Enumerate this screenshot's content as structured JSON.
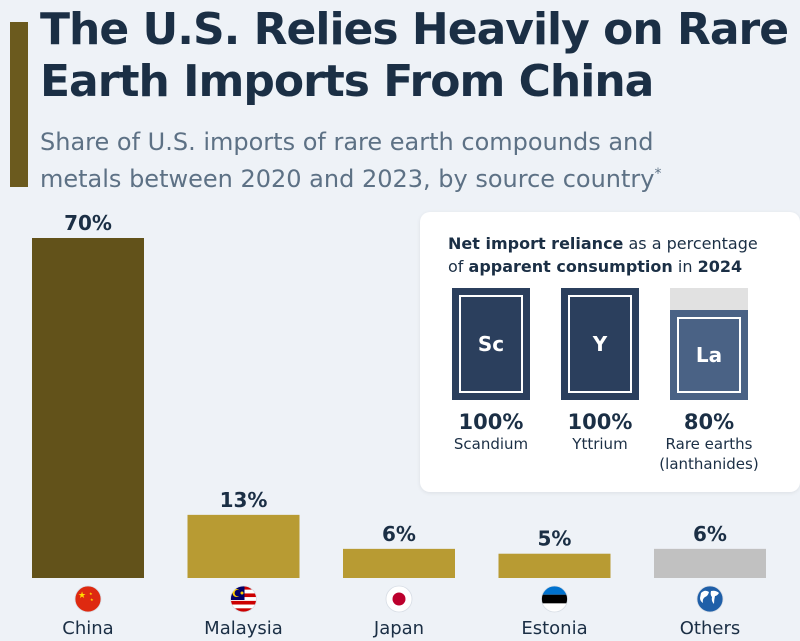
{
  "title_line1": "The U.S. Relies Heavily on Rare",
  "title_line2": "Earth Imports From China",
  "subtitle_line1": "Share of U.S. imports of rare earth compounds and",
  "subtitle_line2": "metals between 2020 and 2023, by source country",
  "subtitle_mark": "*",
  "colors": {
    "china": "#62521a",
    "others_bars": "#b89b33",
    "other_countries": "#c1c1c1",
    "accent": "#6b5a1e",
    "tile": "#2b3f5d",
    "tile_partial": "#4a6285"
  },
  "chart_data": {
    "type": "bar",
    "title": "The U.S. Relies Heavily on Rare Earth Imports From China",
    "subtitle": "Share of U.S. imports of rare earth compounds and metals between 2020 and 2023, by source country*",
    "categories": [
      "China",
      "Malaysia",
      "Japan",
      "Estonia",
      "Others"
    ],
    "values": [
      70,
      13,
      6,
      5,
      6
    ],
    "value_labels": [
      "70%",
      "13%",
      "6%",
      "5%",
      "6%"
    ],
    "unit": "%",
    "flag_icons": [
      "china-flag-icon",
      "malaysia-flag-icon",
      "japan-flag-icon",
      "estonia-flag-icon",
      "globe-icon"
    ],
    "ylim": [
      0,
      70
    ],
    "grid": false,
    "legend": "none"
  },
  "panel": {
    "heading_bold1": "Net import reliance",
    "heading_text1": " as a percentage",
    "heading_text2": "of ",
    "heading_bold2": "apparent consumption",
    "heading_text3": " in ",
    "heading_bold3": "2024",
    "tiles": [
      {
        "symbol": "Sc",
        "value": 100,
        "pct": "100%",
        "name1": "Scandium",
        "name2": ""
      },
      {
        "symbol": "Y",
        "value": 100,
        "pct": "100%",
        "name1": "Yttrium",
        "name2": ""
      },
      {
        "symbol": "La",
        "value": 80,
        "pct": "80%",
        "name1": "Rare earths",
        "name2": "(lanthanides)"
      }
    ]
  }
}
